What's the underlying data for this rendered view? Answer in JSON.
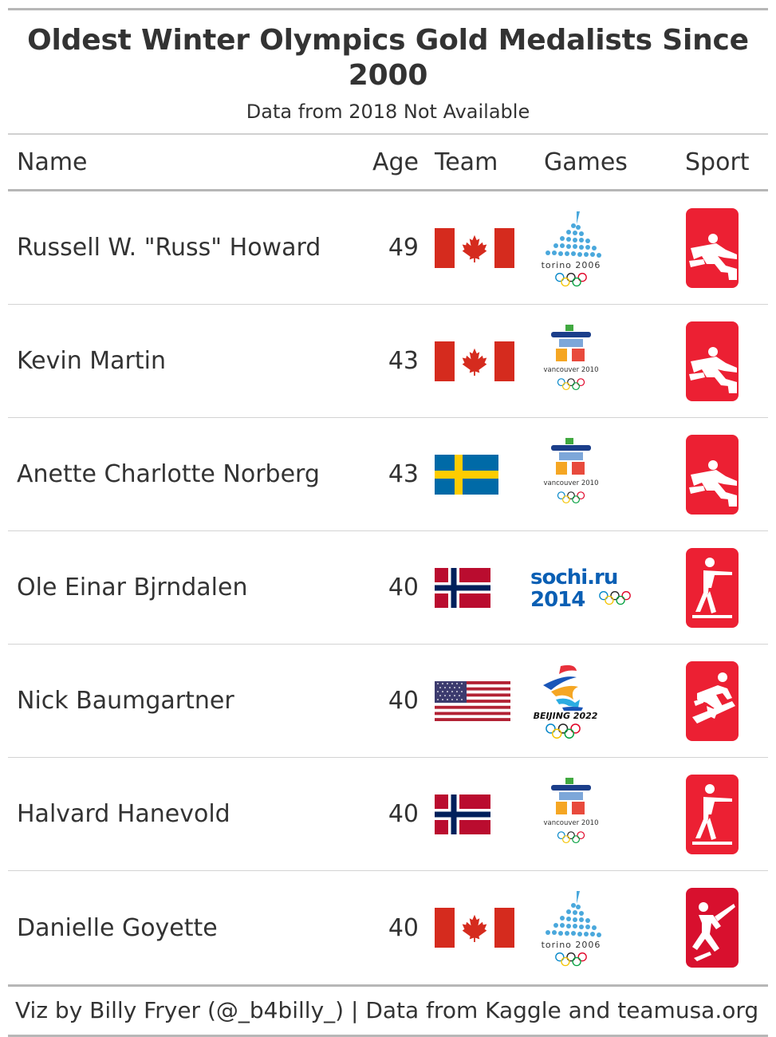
{
  "title": "Oldest Winter Olympics Gold Medalists Since 2000",
  "subtitle": "Data from 2018 Not Available",
  "columns": {
    "name": "Name",
    "age": "Age",
    "team": "Team",
    "games": "Games",
    "sport": "Sport"
  },
  "rows": [
    {
      "name": "Russell W. \"Russ\" Howard",
      "age": "49",
      "team": "canada-flag",
      "games": "torino 2006",
      "sport": "curling"
    },
    {
      "name": "Kevin Martin",
      "age": "43",
      "team": "canada-flag",
      "games": "vancouver 2010",
      "sport": "curling"
    },
    {
      "name": "Anette Charlotte Norberg",
      "age": "43",
      "team": "sweden-flag",
      "games": "vancouver 2010",
      "sport": "curling"
    },
    {
      "name": "Ole Einar Bjrndalen",
      "age": "40",
      "team": "norway-flag",
      "games": "sochi.ru 2014",
      "sport": "biathlon"
    },
    {
      "name": "Nick Baumgartner",
      "age": "40",
      "team": "usa-flag",
      "games": "BEIJING 2022",
      "sport": "snowboard"
    },
    {
      "name": "Halvard Hanevold",
      "age": "40",
      "team": "norway-flag",
      "games": "vancouver 2010",
      "sport": "biathlon"
    },
    {
      "name": "Danielle Goyette",
      "age": "40",
      "team": "canada-flag",
      "games": "torino 2006",
      "sport": "ice-hockey"
    }
  ],
  "logo_text": {
    "torino": "torino 2006",
    "vancouver": "vancouver 2010",
    "sochi_top": "sochi.ru",
    "sochi_bottom": "2014",
    "beijing": "BEIJING 2022"
  },
  "colors": {
    "sport_red": "#ec2033",
    "canada_red": "#d52b1e",
    "sweden_blue": "#006aa7",
    "sweden_yellow": "#fecc00",
    "norway_red": "#ba0c2f",
    "norway_blue": "#00205b",
    "usa_red": "#b22234",
    "usa_blue": "#3c3b6e"
  },
  "footer": "Viz by Billy Fryer (@_b4billy_) | Data from Kaggle and teamusa.org"
}
